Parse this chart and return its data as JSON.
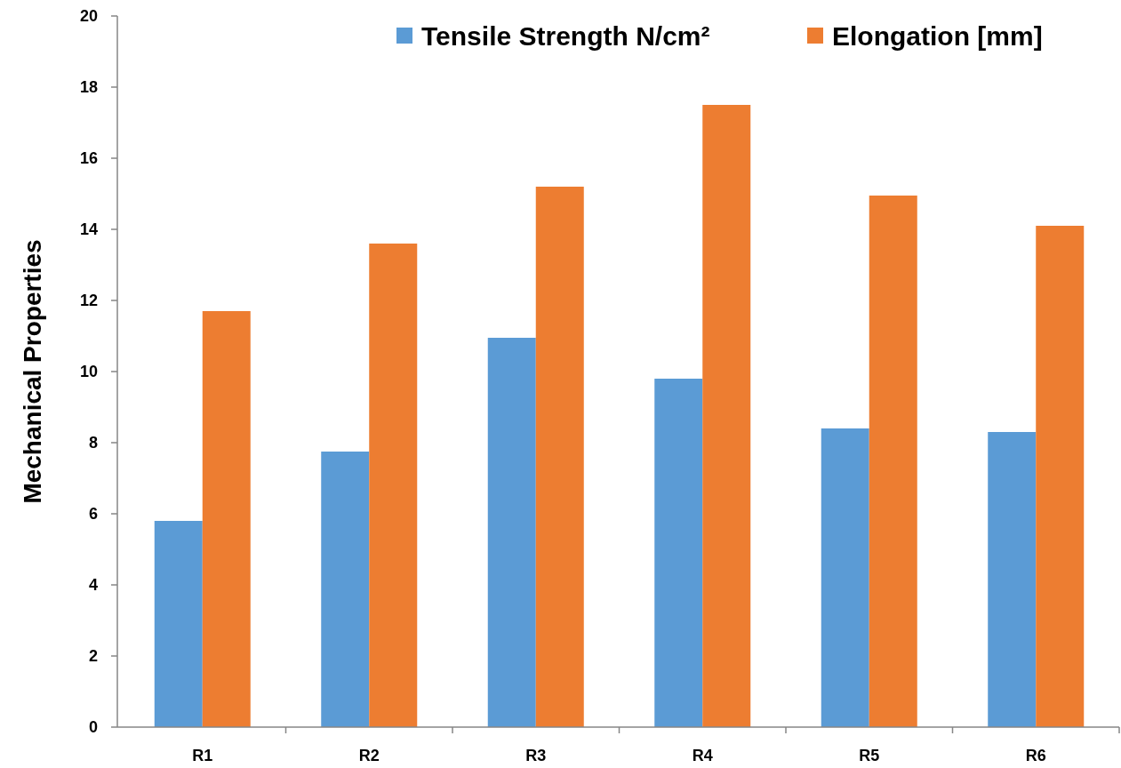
{
  "chart_data": {
    "type": "bar",
    "ylabel": "Mechanical Properties",
    "categories": [
      "R1",
      "R2",
      "R3",
      "R4",
      "R5",
      "R6"
    ],
    "series": [
      {
        "name": "Tensile Strength N/cm²",
        "color": "#5b9bd5",
        "values": [
          5.8,
          7.75,
          10.95,
          9.8,
          8.4,
          8.3
        ]
      },
      {
        "name": "Elongation [mm]",
        "color": "#ed7d31",
        "values": [
          11.7,
          13.6,
          15.2,
          17.5,
          14.95,
          14.1
        ]
      }
    ],
    "ylim": [
      0,
      20
    ],
    "yticks": [
      0,
      2,
      4,
      6,
      8,
      10,
      12,
      14,
      16,
      18,
      20
    ],
    "grid": false,
    "legend": "top right"
  }
}
